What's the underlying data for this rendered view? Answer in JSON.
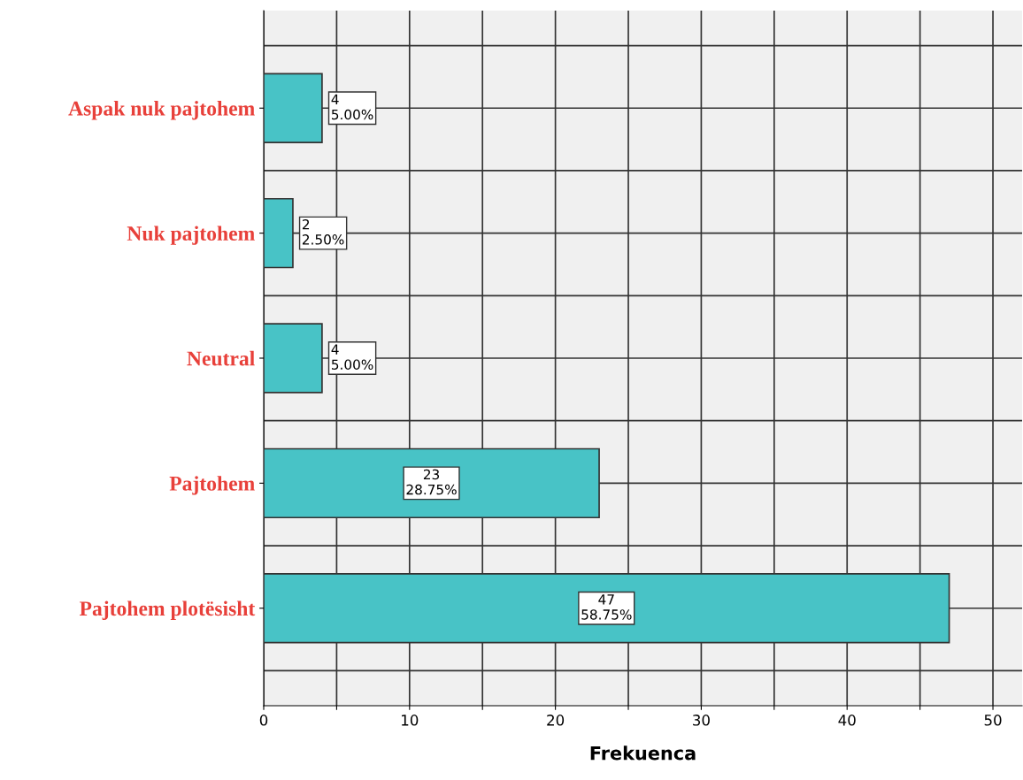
{
  "chart_data": {
    "type": "bar",
    "orientation": "horizontal",
    "xlabel": "Frekuenca",
    "categories": [
      "Aspak nuk pajtohem",
      "Nuk pajtohem",
      "Neutral",
      "Pajtohem",
      "Pajtohem plotësisht"
    ],
    "values": [
      4,
      2,
      4,
      23,
      47
    ],
    "value_labels": [
      "4\n5.00%",
      "2\n2.50%",
      "4\n5.00%",
      "23\n28.75%",
      "47\n58.75%"
    ],
    "color": "#48c3c6",
    "xlim": [
      0,
      52
    ],
    "xticks": [
      0,
      {
        "value": 5,
        "label": null
      },
      10,
      {
        "value": 15,
        "label": null
      },
      20,
      {
        "value": 25,
        "label": null
      },
      30,
      {
        "value": 35,
        "label": null
      },
      40,
      {
        "value": 45,
        "label": null
      },
      50
    ],
    "grid": true
  }
}
